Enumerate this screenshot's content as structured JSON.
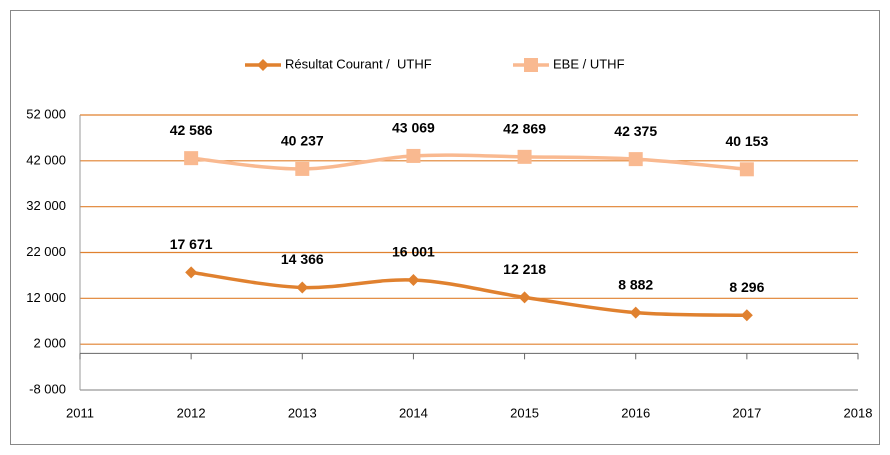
{
  "chart_data": {
    "type": "line",
    "x": [
      2012,
      2013,
      2014,
      2015,
      2016,
      2017
    ],
    "series": [
      {
        "name": "Résultat Courant /  UTHF",
        "color": "#e0812f",
        "marker": "diamond",
        "values": [
          17671,
          14366,
          16001,
          12218,
          8882,
          8296
        ],
        "value_labels": [
          "17 671",
          "14 366",
          "16 001",
          "12 218",
          "8 882",
          "8 296"
        ]
      },
      {
        "name": "EBE / UTHF",
        "color": "#f9b990",
        "marker": "square",
        "values": [
          42586,
          40237,
          43069,
          42869,
          42375,
          40153
        ],
        "value_labels": [
          "42 586",
          "40 237",
          "43 069",
          "42 869",
          "42 375",
          "40 153"
        ]
      }
    ],
    "xlim": [
      2011,
      2018
    ],
    "xticks": [
      2011,
      2012,
      2013,
      2014,
      2015,
      2016,
      2017,
      2018
    ],
    "ylim": [
      -8000,
      52000
    ],
    "yticks": [
      {
        "value": -8000,
        "label": "-8 000"
      },
      {
        "value": 2000,
        "label": "2 000"
      },
      {
        "value": 12000,
        "label": "12 000"
      },
      {
        "value": 22000,
        "label": "22 000"
      },
      {
        "value": 32000,
        "label": "32 000"
      },
      {
        "value": 42000,
        "label": "42 000"
      },
      {
        "value": 52000,
        "label": "52 000"
      }
    ],
    "grid": true,
    "legend": "top",
    "smooth": true
  }
}
